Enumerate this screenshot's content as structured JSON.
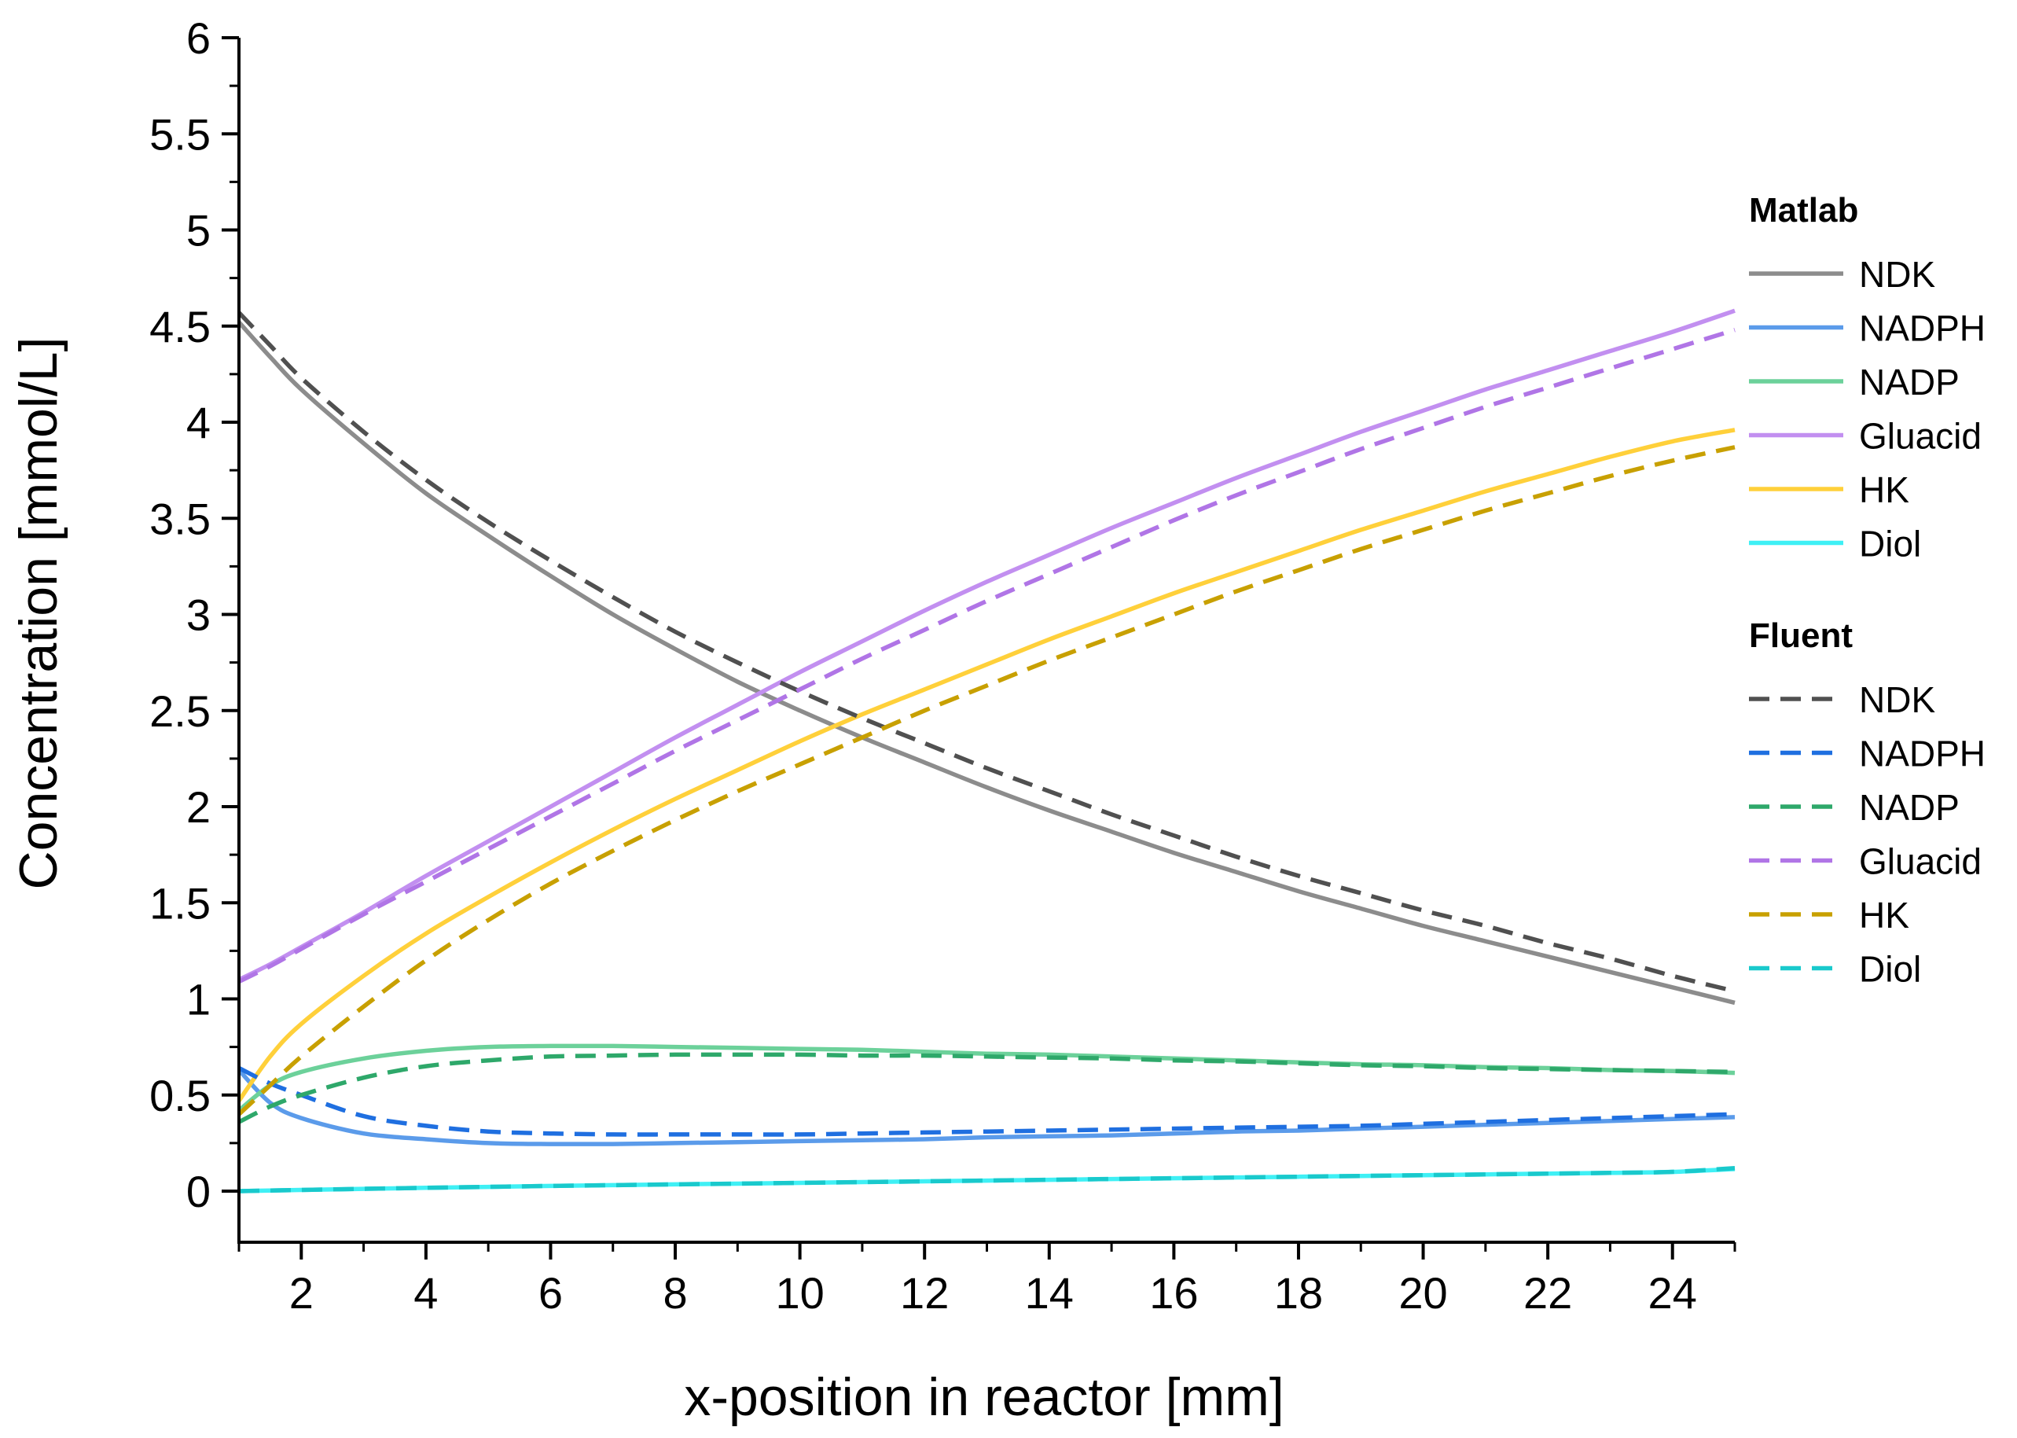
{
  "chart_data": {
    "type": "line",
    "title": "",
    "xlabel": "x-position in reactor [mm]",
    "ylabel": "Concentration [mmol/L]",
    "xlim": [
      1,
      25
    ],
    "ylim": [
      -0.25,
      6
    ],
    "x_ticks": [
      2,
      4,
      6,
      8,
      10,
      12,
      14,
      16,
      18,
      20,
      22,
      24
    ],
    "y_ticks": [
      0,
      0.5,
      1,
      1.5,
      2,
      2.5,
      3,
      3.5,
      4,
      4.5,
      5,
      5.5,
      6
    ],
    "x_tick_labels": [
      "2",
      "4",
      "6",
      "8",
      "10",
      "12",
      "14",
      "16",
      "18",
      "20",
      "22",
      "24"
    ],
    "y_tick_labels": [
      "0",
      "0.5",
      "1",
      "1.5",
      "2",
      "2.5",
      "3",
      "3.5",
      "4",
      "4.5",
      "5",
      "5.5",
      "6"
    ],
    "x": [
      1,
      1.5,
      2,
      3,
      4,
      5,
      6,
      7,
      8,
      9,
      10,
      11,
      12,
      13,
      14,
      15,
      16,
      17,
      18,
      19,
      20,
      21,
      22,
      23,
      24,
      25
    ],
    "legend_groups": [
      {
        "title": "Matlab",
        "style": "solid"
      },
      {
        "title": "Fluent",
        "style": "dashed"
      }
    ],
    "series": [
      {
        "name": "NDK",
        "group": "Matlab",
        "style": "solid",
        "color": "#8c8c8c",
        "values": [
          4.52,
          4.34,
          4.17,
          3.89,
          3.63,
          3.41,
          3.2,
          3.0,
          2.82,
          2.65,
          2.5,
          2.36,
          2.23,
          2.1,
          1.98,
          1.87,
          1.76,
          1.66,
          1.56,
          1.47,
          1.38,
          1.3,
          1.22,
          1.14,
          1.06,
          0.98
        ]
      },
      {
        "name": "NADPH",
        "group": "Matlab",
        "style": "solid",
        "color": "#5b9bea",
        "values": [
          0.63,
          0.46,
          0.38,
          0.3,
          0.27,
          0.25,
          0.245,
          0.245,
          0.25,
          0.255,
          0.26,
          0.265,
          0.27,
          0.28,
          0.285,
          0.29,
          0.3,
          0.31,
          0.315,
          0.325,
          0.335,
          0.345,
          0.355,
          0.365,
          0.375,
          0.385
        ]
      },
      {
        "name": "NADP",
        "group": "Matlab",
        "style": "solid",
        "color": "#6cd19a",
        "values": [
          0.42,
          0.55,
          0.62,
          0.69,
          0.73,
          0.75,
          0.755,
          0.755,
          0.75,
          0.745,
          0.74,
          0.735,
          0.725,
          0.715,
          0.71,
          0.7,
          0.69,
          0.68,
          0.67,
          0.66,
          0.655,
          0.645,
          0.64,
          0.63,
          0.625,
          0.615
        ]
      },
      {
        "name": "Gluacid",
        "group": "Matlab",
        "style": "solid",
        "color": "#c28ff0",
        "values": [
          1.1,
          1.18,
          1.27,
          1.45,
          1.64,
          1.82,
          2.0,
          2.18,
          2.36,
          2.53,
          2.7,
          2.86,
          3.02,
          3.17,
          3.31,
          3.45,
          3.58,
          3.71,
          3.83,
          3.95,
          4.06,
          4.17,
          4.27,
          4.37,
          4.47,
          4.58
        ]
      },
      {
        "name": "HK",
        "group": "Matlab",
        "style": "solid",
        "color": "#ffd03a",
        "values": [
          0.47,
          0.7,
          0.87,
          1.12,
          1.34,
          1.53,
          1.71,
          1.88,
          2.04,
          2.19,
          2.34,
          2.48,
          2.61,
          2.74,
          2.87,
          2.99,
          3.11,
          3.22,
          3.33,
          3.44,
          3.54,
          3.64,
          3.73,
          3.82,
          3.9,
          3.96
        ]
      },
      {
        "name": "Diol",
        "group": "Matlab",
        "style": "solid",
        "color": "#3ff0f5",
        "values": [
          0.0,
          0.003,
          0.006,
          0.012,
          0.017,
          0.022,
          0.027,
          0.031,
          0.035,
          0.039,
          0.043,
          0.047,
          0.051,
          0.055,
          0.059,
          0.063,
          0.067,
          0.071,
          0.075,
          0.079,
          0.083,
          0.087,
          0.091,
          0.095,
          0.1,
          0.115
        ]
      },
      {
        "name": "NDK",
        "group": "Fluent",
        "style": "dashed",
        "color": "#505050",
        "values": [
          4.57,
          4.4,
          4.23,
          3.95,
          3.7,
          3.48,
          3.28,
          3.09,
          2.91,
          2.75,
          2.6,
          2.46,
          2.33,
          2.2,
          2.08,
          1.96,
          1.85,
          1.74,
          1.64,
          1.55,
          1.46,
          1.38,
          1.29,
          1.21,
          1.12,
          1.04
        ]
      },
      {
        "name": "NADPH",
        "group": "Fluent",
        "style": "dashed",
        "color": "#1f6fe0",
        "values": [
          0.64,
          0.56,
          0.5,
          0.39,
          0.34,
          0.31,
          0.3,
          0.295,
          0.295,
          0.295,
          0.295,
          0.3,
          0.305,
          0.31,
          0.315,
          0.32,
          0.325,
          0.33,
          0.335,
          0.34,
          0.35,
          0.36,
          0.37,
          0.38,
          0.39,
          0.4
        ]
      },
      {
        "name": "NADP",
        "group": "Fluent",
        "style": "dashed",
        "color": "#2ea86a",
        "values": [
          0.36,
          0.44,
          0.5,
          0.59,
          0.65,
          0.68,
          0.7,
          0.705,
          0.71,
          0.71,
          0.71,
          0.705,
          0.705,
          0.7,
          0.695,
          0.69,
          0.68,
          0.675,
          0.665,
          0.655,
          0.65,
          0.64,
          0.635,
          0.63,
          0.625,
          0.62
        ]
      },
      {
        "name": "Gluacid",
        "group": "Fluent",
        "style": "dashed",
        "color": "#b075e6",
        "values": [
          1.09,
          1.17,
          1.26,
          1.44,
          1.61,
          1.78,
          1.95,
          2.12,
          2.29,
          2.45,
          2.61,
          2.77,
          2.92,
          3.07,
          3.21,
          3.35,
          3.49,
          3.62,
          3.74,
          3.86,
          3.97,
          4.08,
          4.18,
          4.28,
          4.38,
          4.48
        ]
      },
      {
        "name": "HK",
        "group": "Fluent",
        "style": "dashed",
        "color": "#c8a000",
        "values": [
          0.4,
          0.55,
          0.7,
          0.96,
          1.2,
          1.41,
          1.6,
          1.77,
          1.93,
          2.08,
          2.22,
          2.36,
          2.5,
          2.63,
          2.76,
          2.88,
          3.0,
          3.12,
          3.23,
          3.34,
          3.44,
          3.54,
          3.63,
          3.72,
          3.8,
          3.87
        ]
      },
      {
        "name": "Diol",
        "group": "Fluent",
        "style": "dashed",
        "color": "#19c9cc",
        "values": [
          0.0,
          0.003,
          0.006,
          0.012,
          0.017,
          0.022,
          0.027,
          0.031,
          0.035,
          0.039,
          0.043,
          0.047,
          0.051,
          0.055,
          0.059,
          0.063,
          0.067,
          0.071,
          0.075,
          0.079,
          0.083,
          0.087,
          0.091,
          0.095,
          0.1,
          0.12
        ]
      }
    ]
  }
}
